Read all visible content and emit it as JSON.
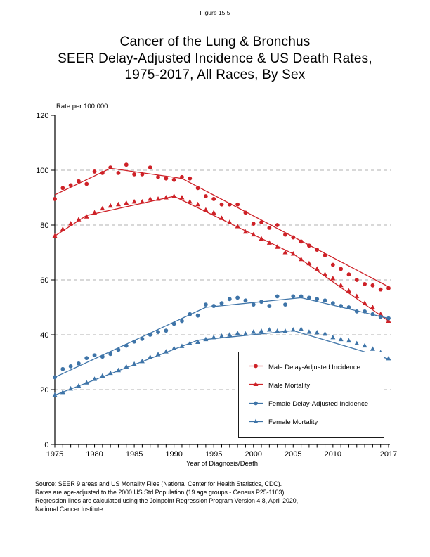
{
  "figure_label": "Figure 15.5",
  "title": {
    "line1": "Cancer of the Lung & Bronchus",
    "line2": "SEER Delay-Adjusted Incidence & US Death Rates,",
    "line3": "1975-2017, All Races, By Sex"
  },
  "chart_data": {
    "type": "scatter",
    "title": "Cancer of the Lung & Bronchus, SEER Delay-Adjusted Incidence & US Death Rates, 1975-2017, All Races, By Sex",
    "xlabel": "Year of Diagnosis/Death",
    "ylabel": "Rate per 100,000",
    "xlim": [
      1975,
      2017
    ],
    "ylim": [
      0,
      120
    ],
    "yticks": [
      0,
      20,
      40,
      60,
      80,
      100,
      120
    ],
    "xtick_labels": [
      1975,
      1980,
      1985,
      1990,
      1995,
      2000,
      2005,
      2010,
      2017
    ],
    "grid_values": [
      20,
      40,
      60,
      80,
      100
    ],
    "grid_on": true,
    "legend_position": "inside lower right",
    "colors": {
      "male": "#CE2127",
      "female": "#3E74A8",
      "grid": "#b0b0b0",
      "axis": "#000000"
    },
    "x": [
      1975,
      1976,
      1977,
      1978,
      1979,
      1980,
      1981,
      1982,
      1983,
      1984,
      1985,
      1986,
      1987,
      1988,
      1989,
      1990,
      1991,
      1992,
      1993,
      1994,
      1995,
      1996,
      1997,
      1998,
      1999,
      2000,
      2001,
      2002,
      2003,
      2004,
      2005,
      2006,
      2007,
      2008,
      2009,
      2010,
      2011,
      2012,
      2013,
      2014,
      2015,
      2016,
      2017
    ],
    "series": [
      {
        "name": "Male Delay-Adjusted Incidence",
        "marker": "circle",
        "color_key": "male",
        "values": [
          89.5,
          93.5,
          94.5,
          96,
          95,
          99.5,
          99,
          101,
          99,
          102,
          98.5,
          98.5,
          101,
          97.5,
          97,
          96.5,
          97.5,
          97,
          93.5,
          90.5,
          89.5,
          87.5,
          87.5,
          87.5,
          84.5,
          80.5,
          81,
          79,
          80,
          76.5,
          75.5,
          74,
          72.5,
          71,
          69,
          65.5,
          64,
          62,
          60,
          58.5,
          58,
          56.5,
          57
        ]
      },
      {
        "name": "Male Mortality",
        "marker": "triangle",
        "color_key": "male",
        "values": [
          76,
          78.5,
          80.5,
          82,
          83,
          84.5,
          86,
          87,
          87.5,
          88,
          88.5,
          88.5,
          89.5,
          89.5,
          90,
          90.5,
          90,
          88.5,
          87.5,
          85.5,
          84.5,
          82.5,
          81,
          79.5,
          77.5,
          76.5,
          75,
          73.5,
          72,
          70,
          69.5,
          67.5,
          66,
          64,
          62,
          60.5,
          58,
          56,
          54,
          51.5,
          50,
          47.5,
          45
        ]
      },
      {
        "name": "Female Delay-Adjusted Incidence",
        "marker": "circle",
        "color_key": "female",
        "values": [
          24.5,
          27.5,
          28.5,
          29.5,
          31.5,
          32.5,
          32,
          33,
          34.5,
          36,
          37.5,
          38.5,
          40,
          41,
          41.5,
          44,
          45,
          47.5,
          47,
          51,
          50.5,
          51.5,
          53,
          53.5,
          52.5,
          51,
          52,
          50.5,
          54,
          51,
          54,
          54,
          53.5,
          53,
          52.5,
          51.5,
          50.5,
          50,
          48.5,
          48.5,
          47.5,
          46.5,
          46
        ]
      },
      {
        "name": "Female Mortality",
        "marker": "triangle",
        "color_key": "female",
        "values": [
          18,
          19,
          20.3,
          21.3,
          22.5,
          23.8,
          25,
          26,
          27,
          28.3,
          29.3,
          30.3,
          31.8,
          32.8,
          33.8,
          35,
          35.8,
          36.8,
          37.3,
          38.3,
          39,
          39.5,
          40,
          40.5,
          40.3,
          41,
          41.3,
          41.8,
          41.3,
          41.3,
          41.8,
          42,
          41,
          40.8,
          40.3,
          39,
          38.3,
          37.8,
          36.8,
          36,
          34.8,
          33.5,
          31.3
        ]
      }
    ],
    "trend_lines": [
      {
        "series": "Male Delay-Adjusted Incidence",
        "color_key": "male",
        "points": [
          [
            1975,
            91
          ],
          [
            1982,
            100.7
          ],
          [
            1991,
            97
          ],
          [
            2017,
            57.5
          ]
        ]
      },
      {
        "series": "Male Mortality",
        "color_key": "male",
        "points": [
          [
            1975,
            76
          ],
          [
            1979,
            83.5
          ],
          [
            1990,
            90.5
          ],
          [
            2005,
            69.5
          ],
          [
            2017,
            45
          ]
        ]
      },
      {
        "series": "Female Delay-Adjusted Incidence",
        "color_key": "female",
        "points": [
          [
            1975,
            24.5
          ],
          [
            1994,
            50
          ],
          [
            2006,
            53.5
          ],
          [
            2017,
            46
          ]
        ]
      },
      {
        "series": "Female Mortality",
        "color_key": "female",
        "points": [
          [
            1975,
            18
          ],
          [
            1993,
            38
          ],
          [
            2005,
            41.5
          ],
          [
            2017,
            31.2
          ]
        ]
      }
    ]
  },
  "legend": {
    "items": [
      {
        "label": "Male Delay-Adjusted Incidence"
      },
      {
        "label": "Male Mortality"
      },
      {
        "label": "Female Delay-Adjusted Incidence"
      },
      {
        "label": "Female Mortality"
      }
    ]
  },
  "source_lines": [
    "Source: SEER 9 areas and US Mortality Files (National Center for Health Statistics, CDC).",
    "Rates are age-adjusted to the 2000 US Std Population (19 age groups - Census P25-1103).",
    "Regression lines are calculated using the Joinpoint Regression Program Version 4.8, April 2020,",
    "National Cancer Institute."
  ]
}
